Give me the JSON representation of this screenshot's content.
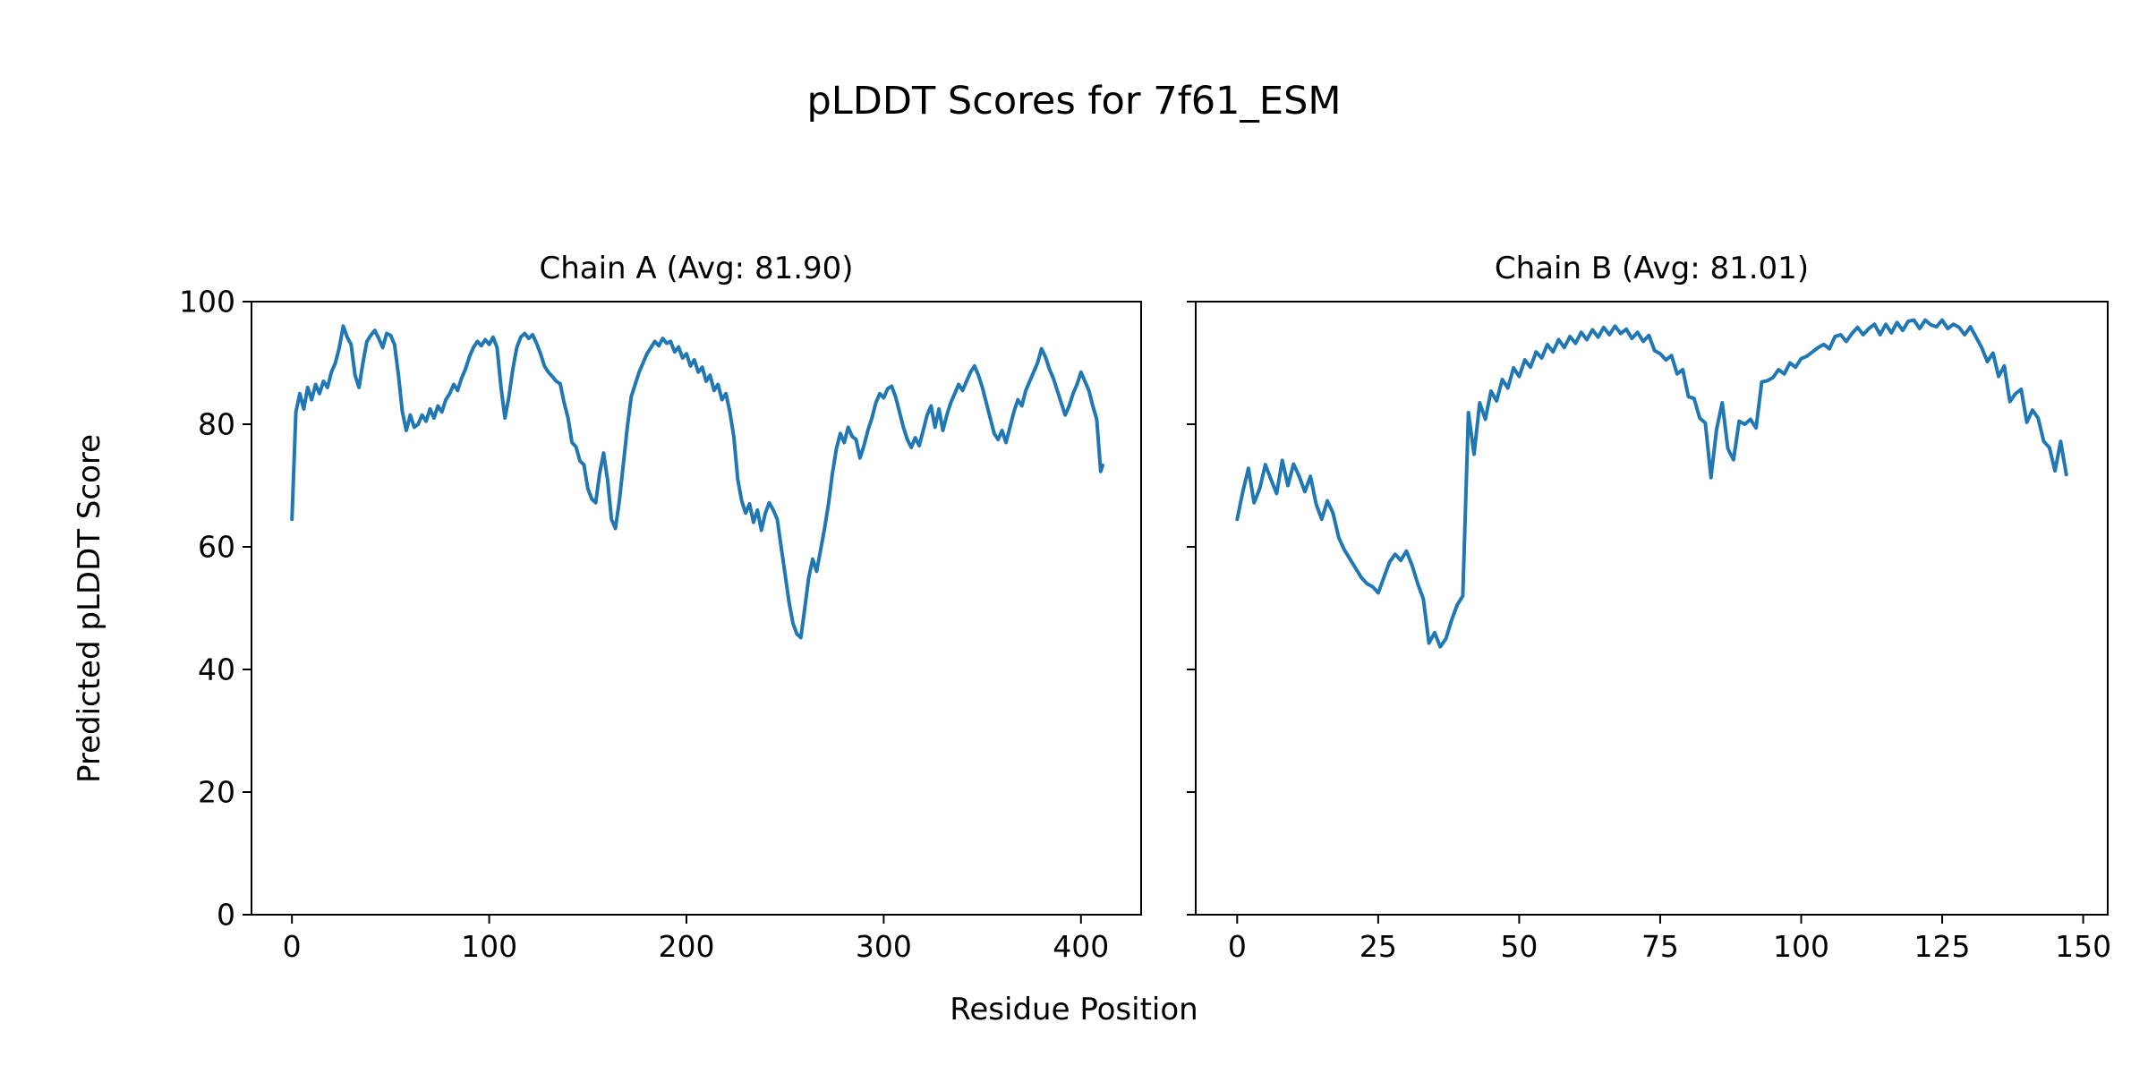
{
  "figure": {
    "suptitle": "pLDDT Scores for 7f61_ESM",
    "xlabel": "Residue Position",
    "ylabel": "Predicted pLDDT Score",
    "background_color": "#ffffff",
    "text_color": "#000000",
    "line_color": "#1f77b4"
  },
  "chart_data": [
    {
      "type": "line",
      "title": "Chain A (Avg: 81.90)",
      "chain": "A",
      "avg": 81.9,
      "color": "#1f77b4",
      "xlim": [
        -20.5,
        430.5
      ],
      "ylim": [
        0,
        100
      ],
      "xticks": [
        0,
        100,
        200,
        300,
        400
      ],
      "yticks": [
        0,
        20,
        40,
        60,
        80,
        100
      ],
      "show_ytick_labels": true,
      "grid": false,
      "points": [
        [
          0,
          64.5
        ],
        [
          2,
          82
        ],
        [
          4,
          85
        ],
        [
          6,
          82.5
        ],
        [
          8,
          86
        ],
        [
          10,
          84
        ],
        [
          12,
          86.5
        ],
        [
          14,
          85
        ],
        [
          16,
          87
        ],
        [
          18,
          86
        ],
        [
          20,
          88.5
        ],
        [
          22,
          90
        ],
        [
          24,
          92.5
        ],
        [
          26,
          96
        ],
        [
          28,
          94.2
        ],
        [
          30,
          93
        ],
        [
          32,
          88
        ],
        [
          34,
          86
        ],
        [
          36,
          90
        ],
        [
          38,
          93.5
        ],
        [
          40,
          94.5
        ],
        [
          42,
          95.3
        ],
        [
          44,
          94
        ],
        [
          46,
          92.5
        ],
        [
          48,
          94.8
        ],
        [
          50,
          94.5
        ],
        [
          52,
          93
        ],
        [
          54,
          88
        ],
        [
          56,
          82
        ],
        [
          58,
          79
        ],
        [
          60,
          81.5
        ],
        [
          62,
          79.5
        ],
        [
          64,
          80
        ],
        [
          66,
          81.5
        ],
        [
          68,
          80.5
        ],
        [
          70,
          82.5
        ],
        [
          72,
          81
        ],
        [
          74,
          83
        ],
        [
          76,
          82
        ],
        [
          78,
          84
        ],
        [
          80,
          85
        ],
        [
          82,
          86.5
        ],
        [
          84,
          85.5
        ],
        [
          86,
          87.5
        ],
        [
          88,
          89
        ],
        [
          90,
          91
        ],
        [
          92,
          92.5
        ],
        [
          94,
          93.5
        ],
        [
          96,
          92.8
        ],
        [
          98,
          93.8
        ],
        [
          100,
          93
        ],
        [
          102,
          94.2
        ],
        [
          104,
          92.5
        ],
        [
          106,
          86
        ],
        [
          108,
          81
        ],
        [
          110,
          84.5
        ],
        [
          112,
          89
        ],
        [
          114,
          92.5
        ],
        [
          116,
          94.2
        ],
        [
          118,
          94.8
        ],
        [
          120,
          94
        ],
        [
          122,
          94.6
        ],
        [
          124,
          93.2
        ],
        [
          126,
          91.5
        ],
        [
          128,
          89.5
        ],
        [
          130,
          88.5
        ],
        [
          132,
          87.8
        ],
        [
          134,
          87
        ],
        [
          136,
          86.6
        ],
        [
          138,
          83.5
        ],
        [
          140,
          81
        ],
        [
          142,
          77
        ],
        [
          144,
          76.3
        ],
        [
          146,
          74
        ],
        [
          148,
          73.4
        ],
        [
          150,
          69.5
        ],
        [
          152,
          67.8
        ],
        [
          154,
          67.2
        ],
        [
          156,
          72
        ],
        [
          158,
          75.3
        ],
        [
          160,
          71
        ],
        [
          162,
          64.5
        ],
        [
          164,
          63
        ],
        [
          166,
          67.5
        ],
        [
          168,
          73.5
        ],
        [
          170,
          79.5
        ],
        [
          172,
          84.5
        ],
        [
          174,
          86.5
        ],
        [
          176,
          88.5
        ],
        [
          178,
          90
        ],
        [
          180,
          91.5
        ],
        [
          182,
          92.5
        ],
        [
          184,
          93.5
        ],
        [
          186,
          92.8
        ],
        [
          188,
          94
        ],
        [
          190,
          93.2
        ],
        [
          192,
          93.5
        ],
        [
          194,
          91.8
        ],
        [
          196,
          92.6
        ],
        [
          198,
          90.8
        ],
        [
          200,
          91.5
        ],
        [
          202,
          89.5
        ],
        [
          204,
          90.5
        ],
        [
          206,
          88.5
        ],
        [
          208,
          89.3
        ],
        [
          210,
          87
        ],
        [
          212,
          88
        ],
        [
          214,
          85.5
        ],
        [
          216,
          86.5
        ],
        [
          218,
          84
        ],
        [
          220,
          85
        ],
        [
          222,
          82
        ],
        [
          224,
          78
        ],
        [
          226,
          71
        ],
        [
          228,
          67.5
        ],
        [
          230,
          65.5
        ],
        [
          232,
          67
        ],
        [
          234,
          64
        ],
        [
          236,
          66
        ],
        [
          238,
          62.7
        ],
        [
          240,
          65.5
        ],
        [
          242,
          67.2
        ],
        [
          244,
          66
        ],
        [
          246,
          64.5
        ],
        [
          248,
          60
        ],
        [
          250,
          55.5
        ],
        [
          252,
          51
        ],
        [
          254,
          47.5
        ],
        [
          256,
          45.8
        ],
        [
          258,
          45.2
        ],
        [
          260,
          50
        ],
        [
          262,
          55
        ],
        [
          264,
          58
        ],
        [
          266,
          56
        ],
        [
          268,
          59.5
        ],
        [
          270,
          63
        ],
        [
          272,
          67
        ],
        [
          274,
          72
        ],
        [
          276,
          76
        ],
        [
          278,
          78.5
        ],
        [
          280,
          77
        ],
        [
          282,
          79.5
        ],
        [
          284,
          78
        ],
        [
          286,
          77.5
        ],
        [
          288,
          74.5
        ],
        [
          290,
          76.5
        ],
        [
          292,
          79
        ],
        [
          294,
          81
        ],
        [
          296,
          83.5
        ],
        [
          298,
          85
        ],
        [
          300,
          84.3
        ],
        [
          302,
          85.8
        ],
        [
          304,
          86.2
        ],
        [
          306,
          84.5
        ],
        [
          308,
          82
        ],
        [
          310,
          79.5
        ],
        [
          312,
          77.5
        ],
        [
          314,
          76.2
        ],
        [
          316,
          77.8
        ],
        [
          318,
          76.5
        ],
        [
          320,
          79
        ],
        [
          322,
          81.5
        ],
        [
          324,
          83
        ],
        [
          326,
          79.5
        ],
        [
          328,
          82.5
        ],
        [
          330,
          79
        ],
        [
          332,
          81.5
        ],
        [
          334,
          83.5
        ],
        [
          336,
          85
        ],
        [
          338,
          86.5
        ],
        [
          340,
          85.5
        ],
        [
          342,
          87
        ],
        [
          344,
          88.5
        ],
        [
          346,
          89.5
        ],
        [
          348,
          88
        ],
        [
          350,
          86
        ],
        [
          352,
          83.5
        ],
        [
          354,
          81
        ],
        [
          356,
          78.5
        ],
        [
          358,
          77.5
        ],
        [
          360,
          79
        ],
        [
          362,
          77
        ],
        [
          364,
          79.5
        ],
        [
          366,
          82
        ],
        [
          368,
          84
        ],
        [
          370,
          83
        ],
        [
          372,
          85.5
        ],
        [
          374,
          87
        ],
        [
          376,
          88.5
        ],
        [
          378,
          90
        ],
        [
          380,
          92.3
        ],
        [
          382,
          91
        ],
        [
          384,
          89
        ],
        [
          386,
          87.5
        ],
        [
          388,
          85.5
        ],
        [
          390,
          83.5
        ],
        [
          392,
          81.5
        ],
        [
          394,
          83
        ],
        [
          396,
          85
        ],
        [
          398,
          86.5
        ],
        [
          400,
          88.5
        ],
        [
          402,
          87
        ],
        [
          404,
          85.5
        ],
        [
          406,
          83
        ],
        [
          408,
          80.8
        ],
        [
          410,
          72.3
        ],
        [
          411,
          73.3
        ]
      ]
    },
    {
      "type": "line",
      "title": "Chain B (Avg: 81.01)",
      "chain": "B",
      "avg": 81.01,
      "color": "#1f77b4",
      "xlim": [
        -7.35,
        154.35
      ],
      "ylim": [
        0,
        100
      ],
      "xticks": [
        0,
        25,
        50,
        75,
        100,
        125,
        150
      ],
      "yticks": [
        0,
        20,
        40,
        60,
        80,
        100
      ],
      "show_ytick_labels": false,
      "grid": false,
      "points": [
        [
          0,
          64.5
        ],
        [
          1,
          69
        ],
        [
          2,
          72.8
        ],
        [
          3,
          67.2
        ],
        [
          4,
          69.5
        ],
        [
          5,
          73.4
        ],
        [
          6,
          71
        ],
        [
          7,
          68.7
        ],
        [
          8,
          74.1
        ],
        [
          9,
          70
        ],
        [
          10,
          73.5
        ],
        [
          11,
          71.5
        ],
        [
          12,
          69
        ],
        [
          13,
          71.5
        ],
        [
          14,
          67
        ],
        [
          15,
          64.5
        ],
        [
          16,
          67.5
        ],
        [
          17,
          65.5
        ],
        [
          18,
          61.5
        ],
        [
          19,
          59.5
        ],
        [
          20,
          58
        ],
        [
          21,
          56.5
        ],
        [
          22,
          55
        ],
        [
          23,
          54
        ],
        [
          24,
          53.5
        ],
        [
          25,
          52.5
        ],
        [
          26,
          55
        ],
        [
          27,
          57.5
        ],
        [
          28,
          58.8
        ],
        [
          29,
          57.8
        ],
        [
          30,
          59.3
        ],
        [
          31,
          57
        ],
        [
          32,
          54
        ],
        [
          33,
          51.5
        ],
        [
          34,
          44.3
        ],
        [
          35,
          46
        ],
        [
          36,
          43.7
        ],
        [
          37,
          45
        ],
        [
          38,
          48
        ],
        [
          39,
          50.5
        ],
        [
          40,
          52
        ],
        [
          41,
          81.9
        ],
        [
          42,
          75.1
        ],
        [
          43,
          83.5
        ],
        [
          44,
          80.8
        ],
        [
          45,
          85.4
        ],
        [
          46,
          83.8
        ],
        [
          47,
          87.3
        ],
        [
          48,
          85.9
        ],
        [
          49,
          89.2
        ],
        [
          50,
          87.8
        ],
        [
          51,
          90.5
        ],
        [
          52,
          89.3
        ],
        [
          53,
          91.8
        ],
        [
          54,
          90.8
        ],
        [
          55,
          93
        ],
        [
          56,
          91.8
        ],
        [
          57,
          93.8
        ],
        [
          58,
          92.5
        ],
        [
          59,
          94.3
        ],
        [
          60,
          93.2
        ],
        [
          61,
          95
        ],
        [
          62,
          93.8
        ],
        [
          63,
          95.4
        ],
        [
          64,
          94.2
        ],
        [
          65,
          95.8
        ],
        [
          66,
          94.6
        ],
        [
          67,
          96
        ],
        [
          68,
          94.8
        ],
        [
          69,
          95.5
        ],
        [
          70,
          94
        ],
        [
          71,
          95
        ],
        [
          72,
          93.5
        ],
        [
          73,
          94.5
        ],
        [
          74,
          92
        ],
        [
          75,
          91.5
        ],
        [
          76,
          90.5
        ],
        [
          77,
          91.2
        ],
        [
          78,
          88.2
        ],
        [
          79,
          88.9
        ],
        [
          80,
          84.5
        ],
        [
          81,
          84.2
        ],
        [
          82,
          81
        ],
        [
          83,
          80.2
        ],
        [
          84,
          71.3
        ],
        [
          85,
          79.2
        ],
        [
          86,
          83.5
        ],
        [
          87,
          76
        ],
        [
          88,
          74.2
        ],
        [
          89,
          80.5
        ],
        [
          90,
          80
        ],
        [
          91,
          80.8
        ],
        [
          92,
          79.4
        ],
        [
          93,
          86.9
        ],
        [
          94,
          87.1
        ],
        [
          95,
          87.6
        ],
        [
          96,
          88.9
        ],
        [
          97,
          88.2
        ],
        [
          98,
          90
        ],
        [
          99,
          89.3
        ],
        [
          100,
          90.7
        ],
        [
          101,
          91.1
        ],
        [
          102,
          91.8
        ],
        [
          103,
          92.5
        ],
        [
          104,
          93
        ],
        [
          105,
          92.3
        ],
        [
          106,
          94.3
        ],
        [
          107,
          94.6
        ],
        [
          108,
          93.5
        ],
        [
          109,
          94.8
        ],
        [
          110,
          95.8
        ],
        [
          111,
          94.6
        ],
        [
          112,
          95.6
        ],
        [
          113,
          96.3
        ],
        [
          114,
          94.6
        ],
        [
          115,
          96.3
        ],
        [
          116,
          94.9
        ],
        [
          117,
          96.6
        ],
        [
          118,
          95.3
        ],
        [
          119,
          96.8
        ],
        [
          120,
          97
        ],
        [
          121,
          95.6
        ],
        [
          122,
          97
        ],
        [
          123,
          96.2
        ],
        [
          124,
          95.9
        ],
        [
          125,
          97
        ],
        [
          126,
          95.6
        ],
        [
          127,
          96.3
        ],
        [
          128,
          95.8
        ],
        [
          129,
          94.6
        ],
        [
          130,
          95.9
        ],
        [
          131,
          94.2
        ],
        [
          132,
          92.5
        ],
        [
          133,
          90.2
        ],
        [
          134,
          91.6
        ],
        [
          135,
          87.8
        ],
        [
          136,
          89.5
        ],
        [
          137,
          83.7
        ],
        [
          138,
          85
        ],
        [
          139,
          85.7
        ],
        [
          140,
          80.3
        ],
        [
          141,
          82.3
        ],
        [
          142,
          81
        ],
        [
          143,
          77.2
        ],
        [
          144,
          76.2
        ],
        [
          145,
          72.4
        ],
        [
          146,
          77.2
        ],
        [
          147,
          71.8
        ]
      ]
    }
  ]
}
